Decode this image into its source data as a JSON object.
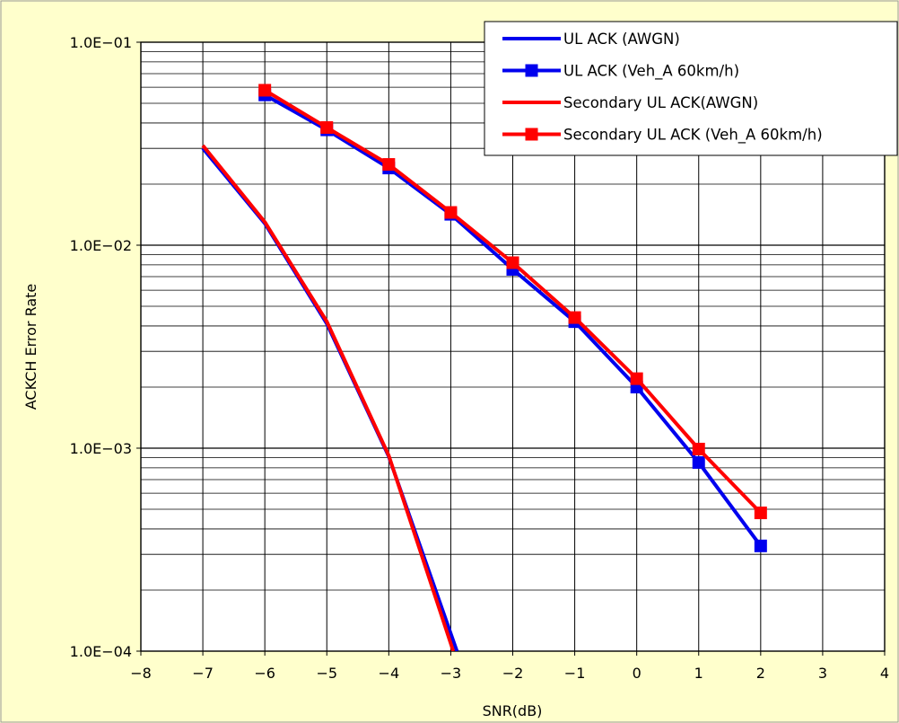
{
  "chart_data": {
    "type": "line",
    "title": "",
    "xlabel": "SNR(dB)",
    "ylabel": "ACKCH Error Rate",
    "xlim": [
      -8,
      4
    ],
    "ylim": [
      0.0001,
      0.1
    ],
    "y_scale": "log",
    "x_ticks": [
      -8,
      -7,
      -6,
      -5,
      -4,
      -3,
      -2,
      -1,
      0,
      1,
      2,
      3,
      4
    ],
    "x_tick_labels": [
      "-8",
      "-7",
      "-6",
      "-5",
      "-4",
      "-3",
      "-2",
      "-1",
      "0",
      "1",
      "2",
      "3",
      "4"
    ],
    "y_ticks": [
      0.1,
      0.01,
      0.001,
      0.0001
    ],
    "y_tick_labels": [
      "1.0E-01",
      "1.0E-02",
      "1.0E-03",
      "1.0E-04"
    ],
    "grid": true,
    "legend_position": "top-right",
    "colors": {
      "page_background": "#ffffcc",
      "plot_background": "#ffffff",
      "series_blue": "#0000ee",
      "series_red": "#ff0000"
    },
    "series": [
      {
        "name": "UL ACK (AWGN)",
        "color": "#0000ee",
        "marker": "none",
        "x": [
          -7,
          -6,
          -5,
          -4,
          -2.9
        ],
        "y": [
          0.03,
          0.0128,
          0.0041,
          0.00091,
          0.0001
        ]
      },
      {
        "name": "UL ACK (Veh_A 60km/h)",
        "color": "#0000ee",
        "marker": "square",
        "x": [
          -6,
          -5,
          -4,
          -3,
          -2,
          -1,
          0,
          1,
          2
        ],
        "y": [
          0.055,
          0.037,
          0.024,
          0.0142,
          0.0076,
          0.0042,
          0.002,
          0.00085,
          0.00033
        ]
      },
      {
        "name": "Secondary UL ACK(AWGN)",
        "color": "#ff0000",
        "marker": "none",
        "x": [
          -7,
          -6,
          -5,
          -4,
          -2.96
        ],
        "y": [
          0.031,
          0.013,
          0.0042,
          0.00092,
          0.0001
        ]
      },
      {
        "name": "Secondary UL ACK (Veh_A 60km/h)",
        "color": "#ff0000",
        "marker": "square",
        "x": [
          -6,
          -5,
          -4,
          -3,
          -2,
          -1,
          0,
          1,
          2
        ],
        "y": [
          0.058,
          0.038,
          0.025,
          0.0145,
          0.0082,
          0.0044,
          0.0022,
          0.00099,
          0.00048
        ]
      }
    ]
  }
}
